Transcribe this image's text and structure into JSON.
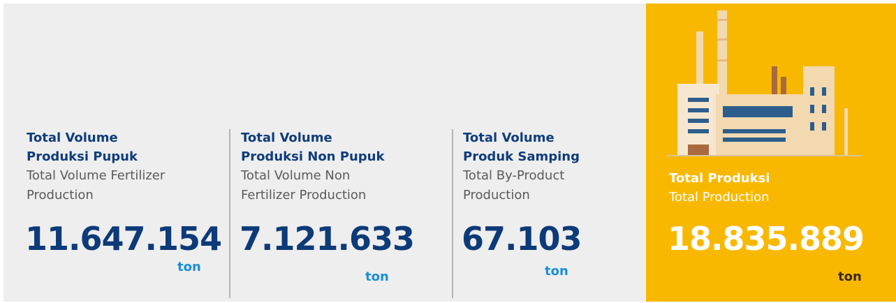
{
  "stats": [
    {
      "title": [
        "Total Volume",
        "Produksi Pupuk"
      ],
      "subtitle": [
        "Total Volume Fertilizer",
        "Production"
      ],
      "value": "11.647.154",
      "unit": "ton"
    },
    {
      "title": [
        "Total Volume",
        "Produksi Non Pupuk"
      ],
      "subtitle": [
        "Total Volume Non",
        "Fertilizer Production"
      ],
      "value": "7.121.633",
      "unit": "ton"
    },
    {
      "title": [
        "Total Volume",
        "Produk Samping"
      ],
      "subtitle": [
        "Total By-Product",
        "Production"
      ],
      "value": "67.103",
      "unit": "ton"
    }
  ],
  "total": {
    "title": "Total Produksi",
    "subtitle": "Total Production",
    "value": "18.835.889",
    "unit": "ton"
  }
}
